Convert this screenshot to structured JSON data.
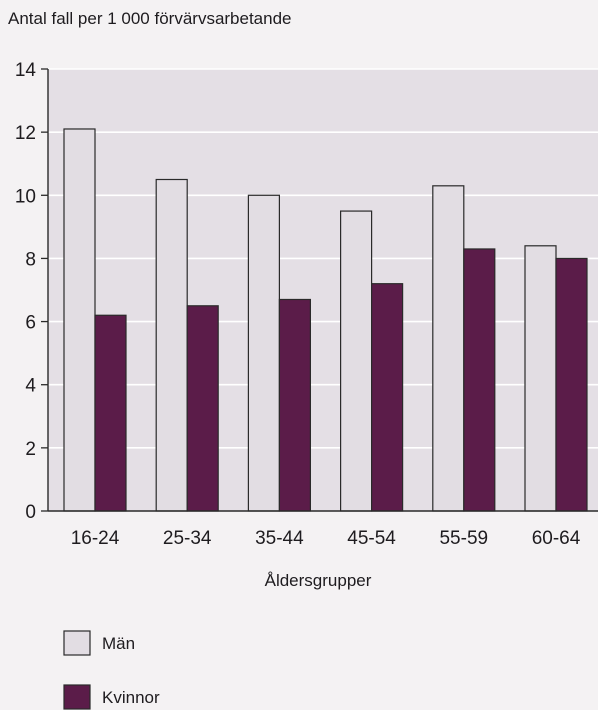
{
  "chart_data": {
    "type": "bar",
    "ylabel": "Antal fall per 1 000 förvärvsarbetande",
    "xlabel": "Åldersgrupper",
    "categories": [
      "16-24",
      "25-34",
      "35-44",
      "45-54",
      "55-59",
      "60-64"
    ],
    "series": [
      {
        "name": "Män",
        "values": [
          12.1,
          10.5,
          10.0,
          9.5,
          10.3,
          8.4
        ]
      },
      {
        "name": "Kvinnor",
        "values": [
          6.2,
          6.5,
          6.7,
          7.2,
          8.3,
          8.0
        ]
      }
    ],
    "ylim": [
      0,
      14
    ],
    "yticks": [
      "0",
      "2",
      "4",
      "6",
      "8",
      "10",
      "12",
      "14"
    ],
    "grid": true,
    "legend_position": "bottom-left"
  },
  "colors": {
    "plot_background": "#e4dfe5",
    "men": "#e2dde3",
    "women": "#5b1c49",
    "bar_outline": "#2a2a2a",
    "gridline": "#ffffff",
    "axis": "#2a2a2a"
  }
}
